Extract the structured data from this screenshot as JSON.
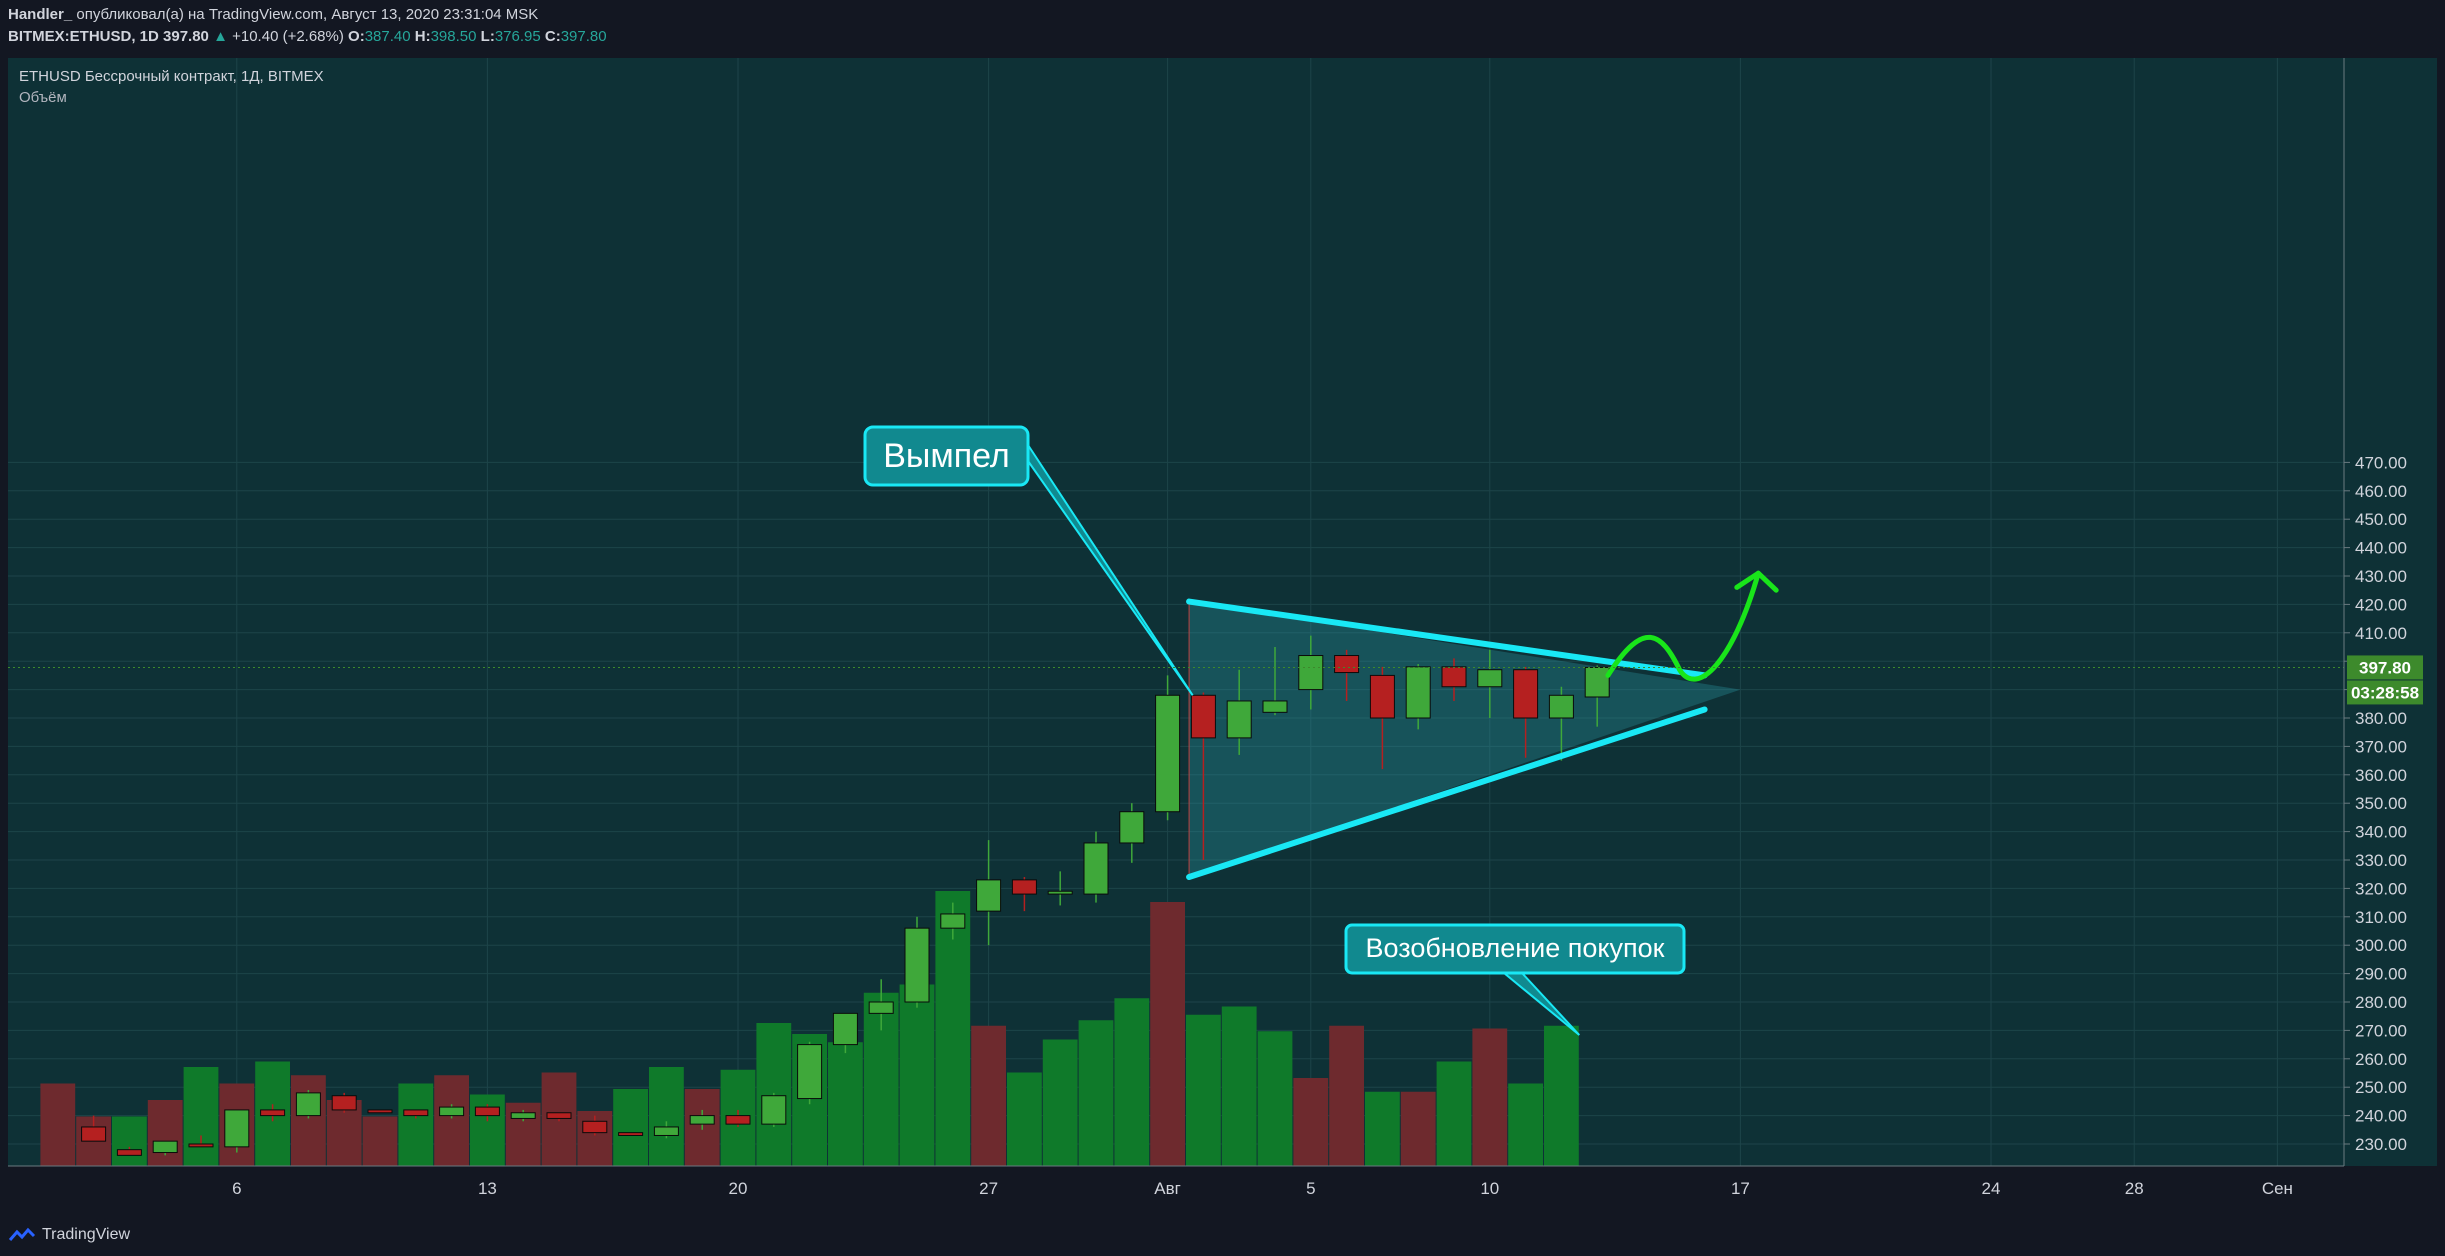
{
  "header": {
    "publisher": "Handler_",
    "published_text": "опубликовал(а) на TradingView.com, Август 13, 2020 23:31:04 MSK",
    "symbol": "BITMEX:ETHUSD, 1D",
    "last": "397.80",
    "change": "+10.40 (+2.68%)",
    "o_label": "O:",
    "o": "387.40",
    "h_label": "H:",
    "h": "398.50",
    "l_label": "L:",
    "l": "376.95",
    "c_label": "C:",
    "c": "397.80"
  },
  "pane": {
    "title": "ETHUSD Бессрочный контракт, 1Д, BITMEX",
    "volume_label": "Объём"
  },
  "price_badge": "397.80",
  "timer_badge": "03:28:58",
  "footer_brand": "TradingView",
  "colors": {
    "background": "#0e3136",
    "up_candle": "#3fa83a",
    "down_candle": "#b52020",
    "up_volume": "#0f7a2a",
    "down_volume": "#6e2a2e",
    "pennant_line": "#19e8f5",
    "arrow": "#19e51a",
    "badge": "#3d8a2c"
  },
  "chart_data": {
    "type": "candlestick",
    "title": "ETHUSD Бессрочный контракт, 1Д, BITMEX",
    "x_ticks": [
      "6",
      "13",
      "20",
      "27",
      "Авг",
      "5",
      "10",
      "17",
      "24",
      "28",
      "Сен"
    ],
    "x_tick_days": [
      6,
      13,
      20,
      27,
      32,
      36,
      41,
      48,
      55,
      59,
      63
    ],
    "y_ticks": [
      230,
      240,
      250,
      260,
      270,
      280,
      290,
      300,
      310,
      320,
      330,
      340,
      350,
      360,
      370,
      380,
      390,
      400,
      410,
      420,
      430,
      440,
      450,
      460,
      470
    ],
    "ylim": [
      225,
      472
    ],
    "candles": [
      {
        "x": 2,
        "o": 236,
        "h": 240,
        "l": 231,
        "c": 231
      },
      {
        "x": 3,
        "o": 228,
        "h": 229,
        "l": 226,
        "c": 226
      },
      {
        "x": 4,
        "o": 227,
        "h": 231,
        "l": 226,
        "c": 231
      },
      {
        "x": 5,
        "o": 230,
        "h": 233,
        "l": 229,
        "c": 229
      },
      {
        "x": 6,
        "o": 229,
        "h": 242,
        "l": 227,
        "c": 242
      },
      {
        "x": 7,
        "o": 242,
        "h": 244,
        "l": 238,
        "c": 240
      },
      {
        "x": 8,
        "o": 240,
        "h": 249,
        "l": 239,
        "c": 248
      },
      {
        "x": 9,
        "o": 247,
        "h": 248,
        "l": 241,
        "c": 242
      },
      {
        "x": 10,
        "o": 242,
        "h": 242,
        "l": 241,
        "c": 241
      },
      {
        "x": 11,
        "o": 242,
        "h": 242,
        "l": 239,
        "c": 240
      },
      {
        "x": 12,
        "o": 240,
        "h": 244,
        "l": 239,
        "c": 243
      },
      {
        "x": 13,
        "o": 243,
        "h": 244,
        "l": 238,
        "c": 240
      },
      {
        "x": 14,
        "o": 239,
        "h": 242,
        "l": 238,
        "c": 241
      },
      {
        "x": 15,
        "o": 241,
        "h": 241,
        "l": 238,
        "c": 239
      },
      {
        "x": 16,
        "o": 238,
        "h": 240,
        "l": 233,
        "c": 234
      },
      {
        "x": 17,
        "o": 234,
        "h": 234,
        "l": 233,
        "c": 233
      },
      {
        "x": 18,
        "o": 233,
        "h": 238,
        "l": 232,
        "c": 236
      },
      {
        "x": 19,
        "o": 237,
        "h": 242,
        "l": 235,
        "c": 240
      },
      {
        "x": 20,
        "o": 240,
        "h": 242,
        "l": 236,
        "c": 237
      },
      {
        "x": 21,
        "o": 237,
        "h": 248,
        "l": 236,
        "c": 247
      },
      {
        "x": 22,
        "o": 246,
        "h": 266,
        "l": 244,
        "c": 265
      },
      {
        "x": 23,
        "o": 265,
        "h": 276,
        "l": 262,
        "c": 276
      },
      {
        "x": 24,
        "o": 276,
        "h": 288,
        "l": 270,
        "c": 280
      },
      {
        "x": 25,
        "o": 280,
        "h": 310,
        "l": 278,
        "c": 306
      },
      {
        "x": 26,
        "o": 306,
        "h": 315,
        "l": 302,
        "c": 311
      },
      {
        "x": 27,
        "o": 312,
        "h": 337,
        "l": 300,
        "c": 323
      },
      {
        "x": 28,
        "o": 323,
        "h": 324,
        "l": 312,
        "c": 318
      },
      {
        "x": 29,
        "o": 318,
        "h": 326,
        "l": 314,
        "c": 319
      },
      {
        "x": 30,
        "o": 318,
        "h": 340,
        "l": 315,
        "c": 336
      },
      {
        "x": 31,
        "o": 336,
        "h": 350,
        "l": 329,
        "c": 347
      },
      {
        "x": 32,
        "o": 347,
        "h": 395,
        "l": 344,
        "c": 388
      },
      {
        "x": 33,
        "o": 388,
        "h": 389,
        "l": 330,
        "c": 373
      },
      {
        "x": 34,
        "o": 373,
        "h": 397,
        "l": 367,
        "c": 386
      },
      {
        "x": 35,
        "o": 382,
        "h": 405,
        "l": 381,
        "c": 386
      },
      {
        "x": 36,
        "o": 390,
        "h": 409,
        "l": 383,
        "c": 402
      },
      {
        "x": 37,
        "o": 402,
        "h": 404,
        "l": 386,
        "c": 396
      },
      {
        "x": 38,
        "o": 395,
        "h": 398,
        "l": 362,
        "c": 380
      },
      {
        "x": 39,
        "o": 380,
        "h": 399,
        "l": 376,
        "c": 398
      },
      {
        "x": 40,
        "o": 398,
        "h": 401,
        "l": 386,
        "c": 391
      },
      {
        "x": 41,
        "o": 391,
        "h": 404,
        "l": 380,
        "c": 397
      },
      {
        "x": 42,
        "o": 397,
        "h": 398,
        "l": 366,
        "c": 380
      },
      {
        "x": 43,
        "o": 380,
        "h": 391,
        "l": 365,
        "c": 388
      },
      {
        "x": 44,
        "o": 387.4,
        "h": 398.5,
        "l": 376.95,
        "c": 397.8
      }
    ],
    "volume": [
      {
        "x": 1,
        "up": false,
        "v": 0.3
      },
      {
        "x": 2,
        "up": false,
        "v": 0.18
      },
      {
        "x": 3,
        "up": true,
        "v": 0.18
      },
      {
        "x": 4,
        "up": false,
        "v": 0.24
      },
      {
        "x": 5,
        "up": true,
        "v": 0.36
      },
      {
        "x": 6,
        "up": false,
        "v": 0.3
      },
      {
        "x": 7,
        "up": true,
        "v": 0.38
      },
      {
        "x": 8,
        "up": false,
        "v": 0.33
      },
      {
        "x": 9,
        "up": false,
        "v": 0.24
      },
      {
        "x": 10,
        "up": false,
        "v": 0.18
      },
      {
        "x": 11,
        "up": true,
        "v": 0.3
      },
      {
        "x": 12,
        "up": false,
        "v": 0.33
      },
      {
        "x": 13,
        "up": true,
        "v": 0.26
      },
      {
        "x": 14,
        "up": false,
        "v": 0.23
      },
      {
        "x": 15,
        "up": false,
        "v": 0.34
      },
      {
        "x": 16,
        "up": false,
        "v": 0.2
      },
      {
        "x": 17,
        "up": true,
        "v": 0.28
      },
      {
        "x": 18,
        "up": true,
        "v": 0.36
      },
      {
        "x": 19,
        "up": false,
        "v": 0.28
      },
      {
        "x": 20,
        "up": true,
        "v": 0.35
      },
      {
        "x": 21,
        "up": true,
        "v": 0.52
      },
      {
        "x": 22,
        "up": true,
        "v": 0.48
      },
      {
        "x": 23,
        "up": true,
        "v": 0.45
      },
      {
        "x": 24,
        "up": true,
        "v": 0.63
      },
      {
        "x": 25,
        "up": true,
        "v": 0.66
      },
      {
        "x": 26,
        "up": true,
        "v": 1.0
      },
      {
        "x": 27,
        "up": false,
        "v": 0.51
      },
      {
        "x": 28,
        "up": true,
        "v": 0.34
      },
      {
        "x": 29,
        "up": true,
        "v": 0.46
      },
      {
        "x": 30,
        "up": true,
        "v": 0.53
      },
      {
        "x": 31,
        "up": true,
        "v": 0.61
      },
      {
        "x": 32,
        "up": false,
        "v": 0.96
      },
      {
        "x": 33,
        "up": true,
        "v": 0.55
      },
      {
        "x": 34,
        "up": true,
        "v": 0.58
      },
      {
        "x": 35,
        "up": true,
        "v": 0.49
      },
      {
        "x": 36,
        "up": false,
        "v": 0.32
      },
      {
        "x": 37,
        "up": false,
        "v": 0.51
      },
      {
        "x": 38,
        "up": true,
        "v": 0.27
      },
      {
        "x": 39,
        "up": false,
        "v": 0.27
      },
      {
        "x": 40,
        "up": true,
        "v": 0.38
      },
      {
        "x": 41,
        "up": false,
        "v": 0.5
      },
      {
        "x": 42,
        "up": true,
        "v": 0.3
      },
      {
        "x": 43,
        "up": true,
        "v": 0.51
      }
    ],
    "annotations": {
      "pennant_label": "Вымпел",
      "pennant_upper": [
        [
          32.6,
          421
        ],
        [
          47,
          395
        ]
      ],
      "pennant_lower": [
        [
          32.6,
          324
        ],
        [
          47,
          383
        ]
      ],
      "pennant_apex": [
        48,
        390
      ],
      "resume_label": "Возобновление покупок"
    }
  }
}
